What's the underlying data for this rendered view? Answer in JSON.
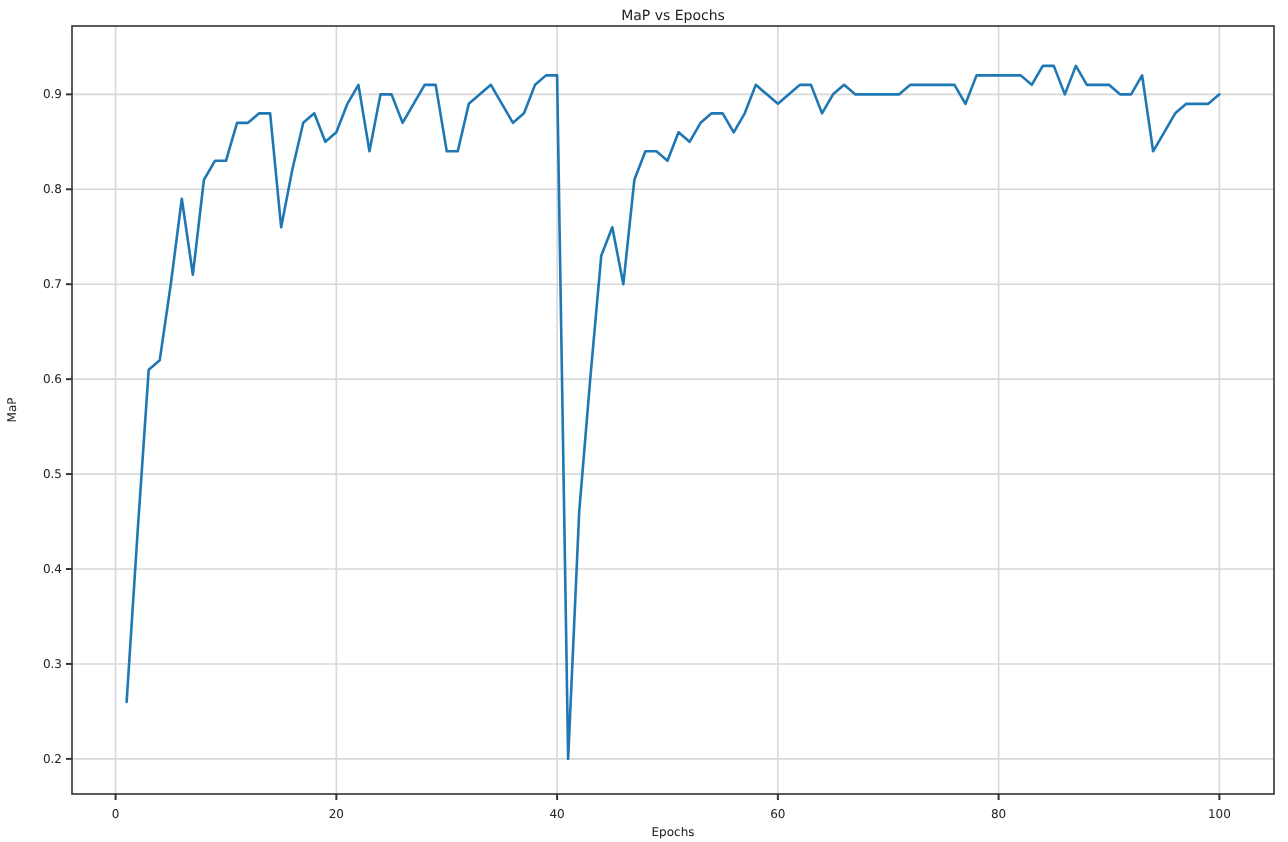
{
  "chart_data": {
    "type": "line",
    "title": "MaP vs Epochs",
    "xlabel": "Epochs",
    "ylabel": "MaP",
    "x": [
      1,
      2,
      3,
      4,
      5,
      6,
      7,
      8,
      9,
      10,
      11,
      12,
      13,
      14,
      15,
      16,
      17,
      18,
      19,
      20,
      21,
      22,
      23,
      24,
      25,
      26,
      27,
      28,
      29,
      30,
      31,
      32,
      33,
      34,
      35,
      36,
      37,
      38,
      39,
      40,
      41,
      42,
      43,
      44,
      45,
      46,
      47,
      48,
      49,
      50,
      51,
      52,
      53,
      54,
      55,
      56,
      57,
      58,
      59,
      60,
      61,
      62,
      63,
      64,
      65,
      66,
      67,
      68,
      69,
      70,
      71,
      72,
      73,
      74,
      75,
      76,
      77,
      78,
      79,
      80,
      81,
      82,
      83,
      84,
      85,
      86,
      87,
      88,
      89,
      90,
      91,
      92,
      93,
      94,
      95,
      96,
      97,
      98,
      99,
      100
    ],
    "series": [
      {
        "color": "#1f77b4",
        "values": [
          0.26,
          0.44,
          0.61,
          0.62,
          0.7,
          0.79,
          0.71,
          0.81,
          0.83,
          0.83,
          0.87,
          0.87,
          0.88,
          0.88,
          0.76,
          0.82,
          0.87,
          0.88,
          0.85,
          0.86,
          0.89,
          0.91,
          0.84,
          0.9,
          0.9,
          0.87,
          0.89,
          0.91,
          0.91,
          0.84,
          0.84,
          0.89,
          0.9,
          0.91,
          0.89,
          0.87,
          0.88,
          0.91,
          0.92,
          0.92,
          0.2,
          0.46,
          0.6,
          0.73,
          0.76,
          0.7,
          0.81,
          0.84,
          0.84,
          0.83,
          0.86,
          0.85,
          0.87,
          0.88,
          0.88,
          0.86,
          0.88,
          0.91,
          0.9,
          0.89,
          0.9,
          0.91,
          0.91,
          0.88,
          0.9,
          0.91,
          0.9,
          0.9,
          0.9,
          0.9,
          0.9,
          0.91,
          0.91,
          0.91,
          0.91,
          0.91,
          0.89,
          0.92,
          0.92,
          0.92,
          0.92,
          0.92,
          0.91,
          0.93,
          0.93,
          0.9,
          0.93,
          0.91,
          0.91,
          0.91,
          0.9,
          0.9,
          0.92,
          0.84,
          0.86,
          0.88,
          0.89,
          0.89,
          0.89,
          0.9
        ]
      }
    ],
    "xlim": [
      -3.95,
      104.95
    ],
    "xticks": [
      0,
      20,
      40,
      60,
      80,
      100
    ],
    "ylim": [
      0.163,
      0.972
    ],
    "yticks": [
      0.2,
      0.3,
      0.4,
      0.5,
      0.6,
      0.7,
      0.8,
      0.9
    ],
    "grid": true,
    "line_style": "solid",
    "marker": "none"
  }
}
